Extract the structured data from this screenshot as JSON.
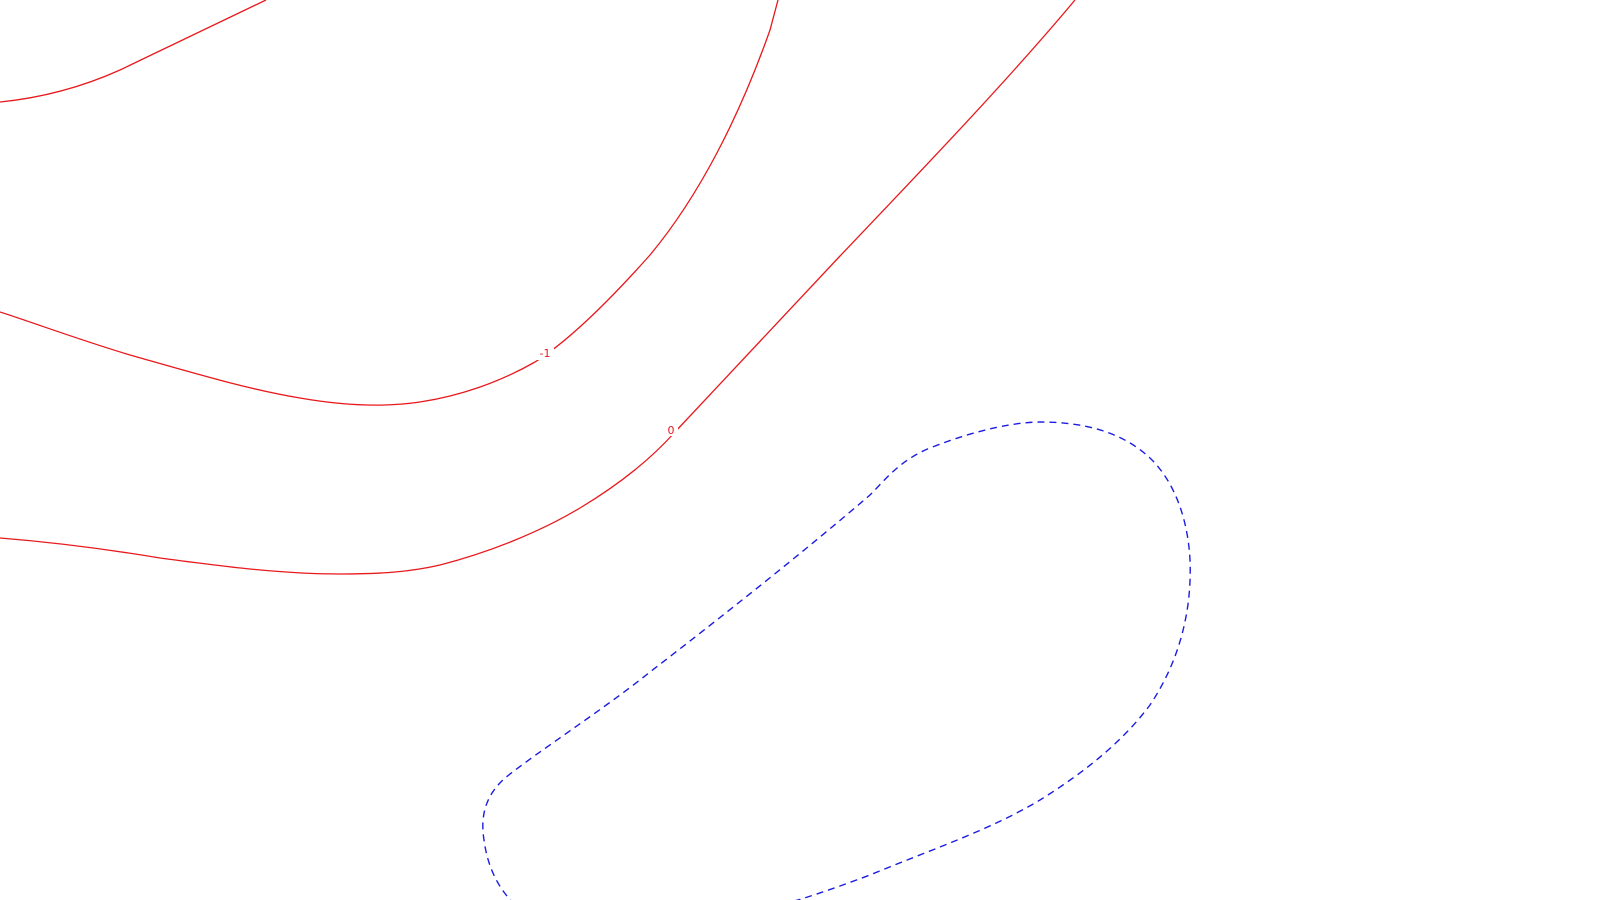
{
  "map": {
    "colors": {
      "background": "#ffffff",
      "positive_contour": "#e8191c",
      "negative_contour": "#1c1ce0"
    },
    "contours": [
      {
        "id": "contour-upper-left",
        "style": "solid",
        "label": ""
      },
      {
        "id": "contour-minus-one",
        "style": "solid",
        "label": "-1"
      },
      {
        "id": "contour-zero",
        "style": "solid",
        "label": "0"
      },
      {
        "id": "contour-dashed-closed",
        "style": "dashed",
        "label": ""
      }
    ]
  }
}
